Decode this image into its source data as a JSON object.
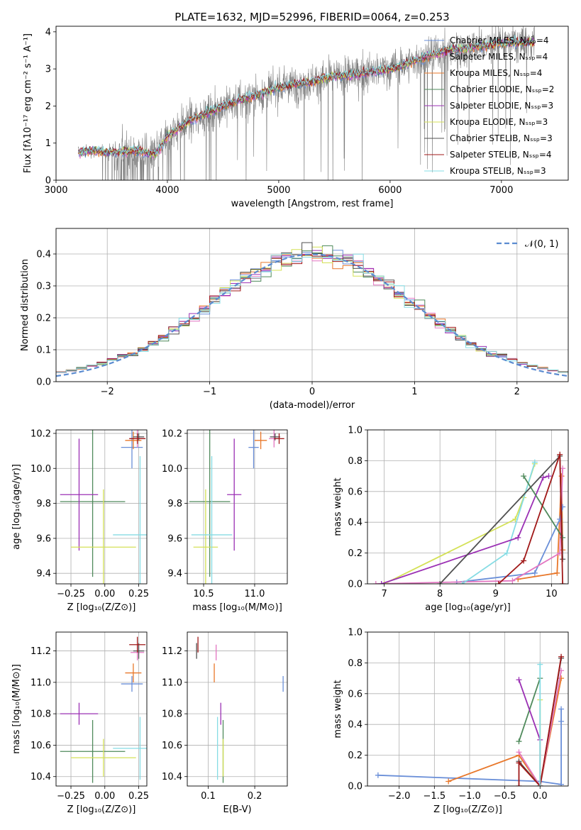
{
  "figure_title": "PLATE=1632, MJD=52996, FIBERID=0064, z=0.253",
  "chart_data": [
    {
      "id": "spectrum",
      "type": "line",
      "title": "PLATE=1632, MJD=52996, FIBERID=0064, z=0.253",
      "xlabel": "wavelength [Angstrom, rest frame]",
      "ylabel": "Flux [fλ10⁻¹⁷ erg cm⁻² s⁻¹ A⁻¹]",
      "xlim": [
        3000,
        7600
      ],
      "ylim": [
        0,
        4.15
      ],
      "xticks": [
        3000,
        4000,
        5000,
        6000,
        7000
      ],
      "yticks": [
        0,
        1,
        2,
        3,
        4
      ],
      "legend_position": "right",
      "legend": [
        {
          "label": "Chabrier MILES, Nₛₛₚ=4",
          "color": "#6a8fd8"
        },
        {
          "label": "Salpeter MILES, Nₛₛₚ=4",
          "color": "#e377c2"
        },
        {
          "label": "Kroupa MILES, Nₛₛₚ=4",
          "color": "#e8772a"
        },
        {
          "label": "Chabrier ELODIE, Nₛₛₚ=2",
          "color": "#4f8a5b"
        },
        {
          "label": "Salpeter ELODIE, Nₛₛₚ=3",
          "color": "#9b30b4"
        },
        {
          "label": "Kroupa ELODIE, Nₛₛₚ=3",
          "color": "#d4e157"
        },
        {
          "label": "Chabrier STELIB, Nₛₛₚ=3",
          "color": "#505050"
        },
        {
          "label": "Salpeter STELIB, Nₛₛₚ=4",
          "color": "#a01818"
        },
        {
          "label": "Kroupa STELIB, Nₛₛₚ=3",
          "color": "#86dce4"
        }
      ],
      "data_color": "#7f7f7f",
      "series_anchor_x": [
        3200,
        3300,
        3500,
        3700,
        3900,
        4000,
        4200,
        4500,
        4800,
        5000,
        5200,
        5500,
        5800,
        6000,
        6200,
        6500,
        6800,
        7000,
        7200,
        7300
      ],
      "series_anchor_y": [
        0.75,
        0.8,
        0.75,
        0.8,
        0.7,
        1.2,
        1.6,
        2.0,
        2.3,
        2.5,
        2.6,
        2.8,
        2.9,
        3.0,
        3.2,
        3.5,
        3.6,
        3.7,
        3.7,
        3.75
      ]
    },
    {
      "id": "residuals",
      "type": "line",
      "xlabel": "(data-model)/error",
      "ylabel": "Normed distribution",
      "xlim": [
        -2.5,
        2.5
      ],
      "ylim": [
        0,
        0.48
      ],
      "xticks": [
        -2,
        -1,
        0,
        1,
        2
      ],
      "yticks": [
        0.0,
        0.1,
        0.2,
        0.3,
        0.4
      ],
      "legend": [
        {
          "label": "𝒩(0, 1)",
          "color": "#5b8bd0"
        }
      ],
      "legend_position": "top-right"
    },
    {
      "id": "age_vs_Z",
      "type": "scatter",
      "xlabel": "Z [log₁₀(Z/Z⊙)]",
      "ylabel": "age  [log₁₀(age/yr)]",
      "xlim": [
        -0.36,
        0.31
      ],
      "ylim": [
        9.34,
        10.22
      ],
      "xticks": [
        -0.25,
        0.0,
        0.25
      ],
      "xticklabels": [
        "−0.25",
        "0.00",
        "0.25"
      ],
      "yticks": [
        9.4,
        9.6,
        9.8,
        10.0,
        10.2
      ],
      "points": [
        {
          "color": "#6a8fd8",
          "x": 0.2,
          "xerr": 0.08,
          "y": 10.12,
          "yerr": 0.12
        },
        {
          "color": "#e377c2",
          "x": 0.24,
          "xerr": 0.05,
          "y": 10.17,
          "yerr": 0.05
        },
        {
          "color": "#e8772a",
          "x": 0.21,
          "xerr": 0.06,
          "y": 10.16,
          "yerr": 0.05
        },
        {
          "color": "#4f8a5b",
          "x": -0.09,
          "xerr": 0.24,
          "y": 9.81,
          "yerr": 0.43
        },
        {
          "color": "#9b30b4",
          "x": -0.19,
          "xerr": 0.14,
          "y": 9.85,
          "yerr": 0.32
        },
        {
          "color": "#d4e157",
          "x": -0.01,
          "xerr": 0.24,
          "y": 9.55,
          "yerr": 0.33
        },
        {
          "color": "#505050",
          "x": 0.25,
          "xerr": 0.04,
          "y": 10.18,
          "yerr": 0.02
        },
        {
          "color": "#a01818",
          "x": 0.24,
          "xerr": 0.06,
          "y": 10.17,
          "yerr": 0.03
        },
        {
          "color": "#86dce4",
          "x": 0.26,
          "xerr": 0.2,
          "y": 9.62,
          "yerr": 0.45
        }
      ]
    },
    {
      "id": "age_vs_mass",
      "type": "scatter",
      "xlabel": "mass [log₁₀(M/M⊙)]",
      "xlim": [
        10.34,
        11.32
      ],
      "ylim": [
        9.34,
        10.22
      ],
      "xticks": [
        10.5,
        11.0
      ],
      "xticklabels": [
        "10.5",
        "11.0"
      ],
      "yticks": [
        9.4,
        9.6,
        9.8,
        10.0,
        10.2
      ],
      "points": [
        {
          "color": "#6a8fd8",
          "x": 10.99,
          "xerr": 0.05,
          "y": 10.12,
          "yerr": 0.12
        },
        {
          "color": "#e377c2",
          "x": 11.19,
          "xerr": 0.05,
          "y": 10.17,
          "yerr": 0.05
        },
        {
          "color": "#e8772a",
          "x": 11.06,
          "xerr": 0.06,
          "y": 10.16,
          "yerr": 0.05
        },
        {
          "color": "#4f8a5b",
          "x": 10.56,
          "xerr": 0.2,
          "y": 9.81,
          "yerr": 0.43
        },
        {
          "color": "#9b30b4",
          "x": 10.8,
          "xerr": 0.07,
          "y": 9.85,
          "yerr": 0.32
        },
        {
          "color": "#d4e157",
          "x": 10.52,
          "xerr": 0.12,
          "y": 9.55,
          "yerr": 0.33
        },
        {
          "color": "#505050",
          "x": 11.2,
          "xerr": 0.05,
          "y": 10.18,
          "yerr": 0.02
        },
        {
          "color": "#a01818",
          "x": 11.24,
          "xerr": 0.05,
          "y": 10.17,
          "yerr": 0.03
        },
        {
          "color": "#86dce4",
          "x": 10.58,
          "xerr": 0.2,
          "y": 9.62,
          "yerr": 0.45
        }
      ]
    },
    {
      "id": "massweight_vs_age",
      "type": "line",
      "xlabel": "age  [log₁₀(age/yr)]",
      "ylabel": "mass weight",
      "xlim": [
        6.7,
        10.3
      ],
      "ylim": [
        0,
        1
      ],
      "xticks": [
        7,
        8,
        9,
        10
      ],
      "yticks": [
        0.0,
        0.2,
        0.4,
        0.6,
        0.8,
        1.0
      ],
      "series": [
        {
          "color": "#e8772a",
          "x": [
            9.4,
            10.1,
            10.18,
            10.2
          ],
          "y": [
            0.03,
            0.07,
            0.7,
            0.22
          ]
        },
        {
          "color": "#6a8fd8",
          "x": [
            8.3,
            9.7,
            10.15,
            10.2
          ],
          "y": [
            0.01,
            0.07,
            0.42,
            0.5
          ]
        },
        {
          "color": "#e377c2",
          "x": [
            6.85,
            9.3,
            10.15,
            10.2
          ],
          "y": [
            0.0,
            0.02,
            0.2,
            0.75
          ]
        },
        {
          "color": "#d4e157",
          "x": [
            7.0,
            9.35,
            9.5,
            9.7
          ],
          "y": [
            0.0,
            0.42,
            0.56,
            0.78
          ]
        },
        {
          "color": "#86dce4",
          "x": [
            8.4,
            9.2,
            9.7
          ],
          "y": [
            0.0,
            0.2,
            0.79
          ]
        },
        {
          "color": "#9b30b4",
          "x": [
            6.95,
            9.4,
            9.85,
            9.95
          ],
          "y": [
            0.0,
            0.3,
            0.69,
            0.7
          ]
        },
        {
          "color": "#4f8a5b",
          "x": [
            9.5,
            10.2
          ],
          "y": [
            0.7,
            0.3
          ]
        },
        {
          "color": "#505050",
          "x": [
            8.0,
            10.15,
            10.2
          ],
          "y": [
            0.0,
            0.83,
            0.16
          ]
        },
        {
          "color": "#a01818",
          "x": [
            9.05,
            9.5,
            10.15,
            10.2
          ],
          "y": [
            0.0,
            0.15,
            0.84,
            0.0
          ]
        }
      ]
    },
    {
      "id": "mass_vs_Z",
      "type": "scatter",
      "xlabel": "Z [log₁₀(Z/Z⊙)]",
      "ylabel": "mass [log₁₀(M/M⊙)]",
      "xlim": [
        -0.36,
        0.31
      ],
      "ylim": [
        10.34,
        11.32
      ],
      "xticks": [
        -0.25,
        0.0,
        0.25
      ],
      "xticklabels": [
        "−0.25",
        "0.00",
        "0.25"
      ],
      "yticks": [
        10.4,
        10.6,
        10.8,
        11.0,
        11.2
      ],
      "points": [
        {
          "color": "#6a8fd8",
          "x": 0.2,
          "xerr": 0.08,
          "y": 10.99,
          "yerr": 0.05
        },
        {
          "color": "#e377c2",
          "x": 0.24,
          "xerr": 0.05,
          "y": 11.19,
          "yerr": 0.05
        },
        {
          "color": "#e8772a",
          "x": 0.21,
          "xerr": 0.06,
          "y": 11.06,
          "yerr": 0.06
        },
        {
          "color": "#4f8a5b",
          "x": -0.09,
          "xerr": 0.24,
          "y": 10.56,
          "yerr": 0.2
        },
        {
          "color": "#9b30b4",
          "x": -0.19,
          "xerr": 0.14,
          "y": 10.8,
          "yerr": 0.07
        },
        {
          "color": "#d4e157",
          "x": -0.01,
          "xerr": 0.24,
          "y": 10.52,
          "yerr": 0.12
        },
        {
          "color": "#505050",
          "x": 0.25,
          "xerr": 0.04,
          "y": 11.2,
          "yerr": 0.05
        },
        {
          "color": "#a01818",
          "x": 0.24,
          "xerr": 0.06,
          "y": 11.24,
          "yerr": 0.05
        },
        {
          "color": "#86dce4",
          "x": 0.26,
          "xerr": 0.2,
          "y": 10.58,
          "yerr": 0.2
        }
      ]
    },
    {
      "id": "mass_vs_EBV",
      "type": "scatter",
      "xlabel": "E(B-V)",
      "xlim": [
        0.055,
        0.27
      ],
      "ylim": [
        10.34,
        11.32
      ],
      "xticks": [
        0.1,
        0.2
      ],
      "xticklabels": [
        "0.1",
        "0.2"
      ],
      "yticks": [
        10.4,
        10.6,
        10.8,
        11.0,
        11.2
      ],
      "points": [
        {
          "color": "#6a8fd8",
          "x": 0.261,
          "y": 10.99,
          "yerr": 0.05
        },
        {
          "color": "#e377c2",
          "x": 0.117,
          "y": 11.19,
          "yerr": 0.05
        },
        {
          "color": "#e8772a",
          "x": 0.113,
          "y": 11.06,
          "yerr": 0.06
        },
        {
          "color": "#4f8a5b",
          "x": 0.132,
          "y": 10.56,
          "yerr": 0.2
        },
        {
          "color": "#9b30b4",
          "x": 0.127,
          "y": 10.8,
          "yerr": 0.07
        },
        {
          "color": "#d4e157",
          "x": 0.132,
          "y": 10.52,
          "yerr": 0.12
        },
        {
          "color": "#505050",
          "x": 0.075,
          "y": 11.2,
          "yerr": 0.05
        },
        {
          "color": "#a01818",
          "x": 0.078,
          "y": 11.24,
          "yerr": 0.05
        },
        {
          "color": "#86dce4",
          "x": 0.12,
          "y": 10.58,
          "yerr": 0.2
        }
      ]
    },
    {
      "id": "massweight_vs_Z",
      "type": "line",
      "xlabel": "Z [log₁₀(Z/Z⊙)]",
      "ylabel": "mass weight",
      "xlim": [
        -2.45,
        0.4
      ],
      "ylim": [
        0,
        1
      ],
      "xticks": [
        -2.0,
        -1.5,
        -1.0,
        -0.5,
        0.0
      ],
      "xticklabels": [
        "−2.0",
        "−1.5",
        "−1.0",
        "−0.5",
        "0.0"
      ],
      "yticks": [
        0.0,
        0.2,
        0.4,
        0.6,
        0.8,
        1.0
      ],
      "series": [
        {
          "color": "#6a8fd8",
          "x": [
            -2.3,
            0.0,
            0.3,
            0.3,
            0.3
          ],
          "y": [
            0.07,
            0.03,
            0.01,
            0.42,
            0.5
          ]
        },
        {
          "color": "#e8772a",
          "x": [
            -1.3,
            -0.3,
            0.0,
            0.3
          ],
          "y": [
            0.03,
            0.2,
            0.0,
            0.7
          ]
        },
        {
          "color": "#e377c2",
          "x": [
            -0.3,
            0.0,
            0.3
          ],
          "y": [
            0.22,
            0.0,
            0.75
          ]
        },
        {
          "color": "#4f8a5b",
          "x": [
            -0.3,
            0.0
          ],
          "y": [
            0.29,
            0.7
          ]
        },
        {
          "color": "#9b30b4",
          "x": [
            -0.3,
            0.0,
            0.0
          ],
          "y": [
            0.69,
            0.3,
            0.0
          ]
        },
        {
          "color": "#d4e157",
          "x": [
            0.0,
            0.0
          ],
          "y": [
            0.0,
            0.56
          ]
        },
        {
          "color": "#505050",
          "x": [
            -0.3,
            0.0,
            0.3
          ],
          "y": [
            0.16,
            0.0,
            0.83
          ]
        },
        {
          "color": "#a01818",
          "x": [
            -0.3,
            -0.3,
            0.0,
            0.3
          ],
          "y": [
            0.0,
            0.15,
            0.0,
            0.84
          ]
        },
        {
          "color": "#86dce4",
          "x": [
            0.0,
            0.0
          ],
          "y": [
            0.0,
            0.79
          ]
        }
      ]
    }
  ]
}
